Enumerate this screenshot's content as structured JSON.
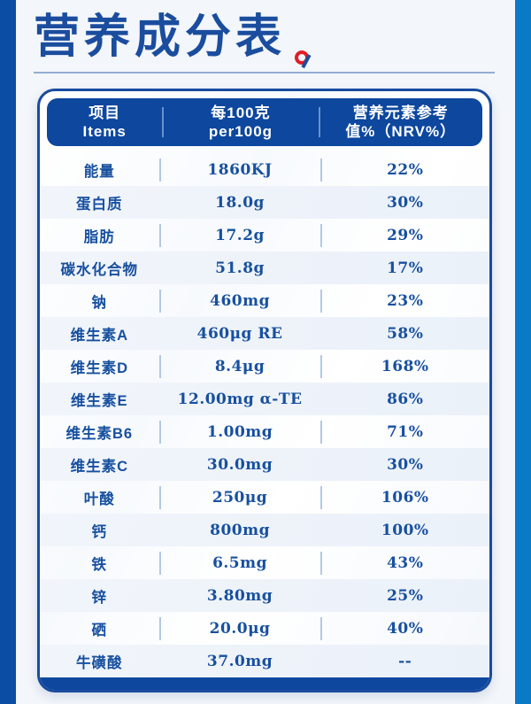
{
  "header": {
    "title": "营养成分表"
  },
  "table": {
    "header": {
      "col1_zh": "项目",
      "col1_en": "Items",
      "col2_zh": "每100克",
      "col2_en": "per100g",
      "col3_line1": "营养元素参考",
      "col3_line2": "值%（NRV%）"
    },
    "rows": [
      {
        "item": "能量",
        "per100g": "1860KJ",
        "nrv": "22%"
      },
      {
        "item": "蛋白质",
        "per100g": "18.0g",
        "nrv": "30%"
      },
      {
        "item": "脂肪",
        "per100g": "17.2g",
        "nrv": "29%"
      },
      {
        "item": "碳水化合物",
        "per100g": "51.8g",
        "nrv": "17%"
      },
      {
        "item": "钠",
        "per100g": "460mg",
        "nrv": "23%"
      },
      {
        "item": "维生素A",
        "per100g": "460μg RE",
        "nrv": "58%"
      },
      {
        "item": "维生素D",
        "per100g": "8.4μg",
        "nrv": "168%"
      },
      {
        "item": "维生素E",
        "per100g": "12.00mg α-TE",
        "nrv": "86%"
      },
      {
        "item": "维生素B6",
        "per100g": "1.00mg",
        "nrv": "71%"
      },
      {
        "item": "维生素C",
        "per100g": "30.0mg",
        "nrv": "30%"
      },
      {
        "item": "叶酸",
        "per100g": "250μg",
        "nrv": "106%"
      },
      {
        "item": "钙",
        "per100g": "800mg",
        "nrv": "100%"
      },
      {
        "item": "铁",
        "per100g": "6.5mg",
        "nrv": "43%"
      },
      {
        "item": "锌",
        "per100g": "3.80mg",
        "nrv": "25%"
      },
      {
        "item": "硒",
        "per100g": "20.0μg",
        "nrv": "40%"
      },
      {
        "item": "牛磺酸",
        "per100g": "37.0mg",
        "nrv": "--"
      }
    ]
  },
  "colors": {
    "navy": "#0d479e",
    "left_stripe": "#0b4da5",
    "right_stripe": "#0a7ac6",
    "text_blue": "#17509f",
    "title_blue": "#1b4d9e",
    "red_mark": "#e31c25",
    "row_tint": "#eff3fa",
    "divider": "#b5c7e4"
  }
}
